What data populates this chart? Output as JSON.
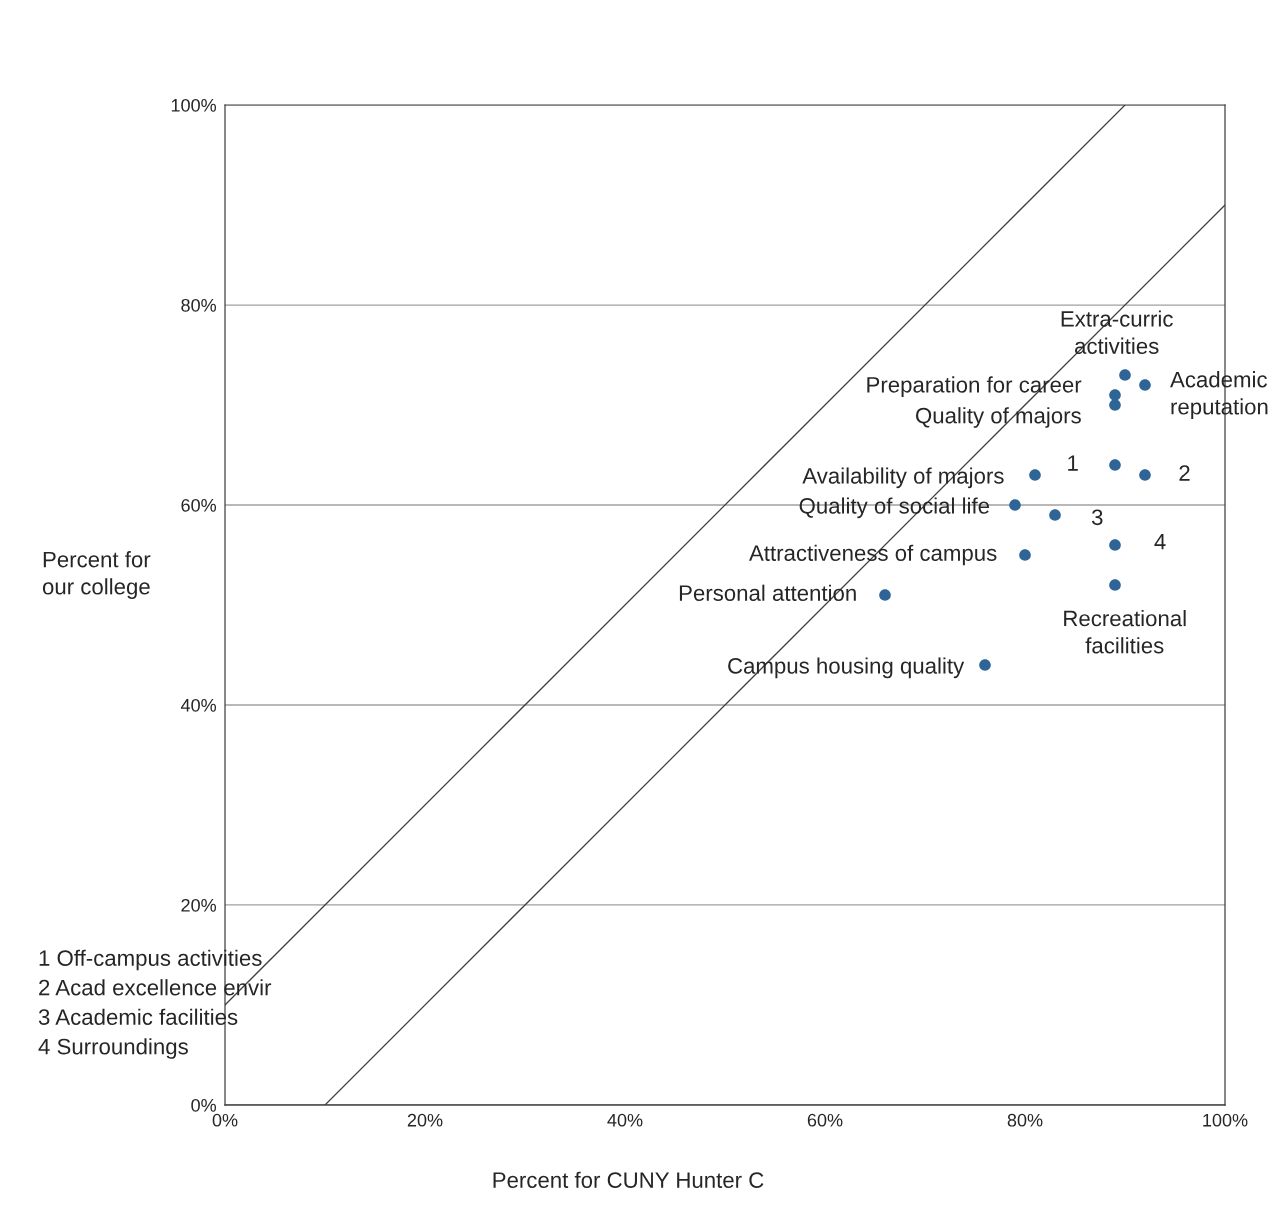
{
  "chart_data": {
    "type": "scatter",
    "xlabel": "Percent for CUNY Hunter C",
    "ylabel": "Percent for\nour college",
    "xlim": [
      0,
      100
    ],
    "ylim": [
      0,
      100
    ],
    "xticks": [
      {
        "value": 0,
        "label": "0%"
      },
      {
        "value": 20,
        "label": "20%"
      },
      {
        "value": 40,
        "label": "40%"
      },
      {
        "value": 60,
        "label": "60%"
      },
      {
        "value": 80,
        "label": "80%"
      },
      {
        "value": 100,
        "label": "100%"
      }
    ],
    "yticks": [
      {
        "value": 0,
        "label": "0%"
      },
      {
        "value": 20,
        "label": "20%"
      },
      {
        "value": 40,
        "label": "40%"
      },
      {
        "value": 60,
        "label": "60%"
      },
      {
        "value": 80,
        "label": "80%"
      },
      {
        "value": 100,
        "label": "100%"
      }
    ],
    "grid": "y",
    "legend": false,
    "marker": "circle",
    "series": [
      {
        "type": "line",
        "marker": "none",
        "color": "#404040",
        "x": [
          0,
          90
        ],
        "values": [
          10,
          100
        ]
      },
      {
        "type": "line",
        "marker": "none",
        "color": "#404040",
        "x": [
          10,
          100
        ],
        "values": [
          0,
          90
        ]
      },
      {
        "color": "#2e6496",
        "x": [
          90,
          92,
          89,
          89,
          89,
          92,
          81,
          79,
          83,
          89,
          80,
          89,
          66,
          76
        ],
        "values": [
          73,
          72,
          71,
          70,
          64,
          63,
          63,
          60,
          59,
          56,
          55,
          52,
          51,
          44
        ]
      }
    ],
    "annotations": [
      {
        "text": "Extra-curric\nactivities",
        "x": 90,
        "y": 73
      },
      {
        "text": "Academic\nreputation",
        "x": 92,
        "y": 72
      },
      {
        "text": "Preparation for career",
        "x": 89,
        "y": 71
      },
      {
        "text": "Quality of majors",
        "x": 89,
        "y": 70
      },
      {
        "text": "1",
        "x": 89,
        "y": 64
      },
      {
        "text": "2",
        "x": 92,
        "y": 63
      },
      {
        "text": "Availability of majors",
        "x": 81,
        "y": 63
      },
      {
        "text": "Quality of social life",
        "x": 79,
        "y": 60
      },
      {
        "text": "3",
        "x": 83,
        "y": 59
      },
      {
        "text": "4",
        "x": 89,
        "y": 56
      },
      {
        "text": "Attractiveness of campus",
        "x": 80,
        "y": 55
      },
      {
        "text": "Recreational\nfacilities",
        "x": 89,
        "y": 52
      },
      {
        "text": "Personal attention",
        "x": 66,
        "y": 51
      },
      {
        "text": "Campus housing quality",
        "x": 76,
        "y": 44
      },
      "1 Off-campus activities",
      "2 Acad excellence envir",
      "3 Academic facilities",
      "4 Surroundings"
    ]
  }
}
